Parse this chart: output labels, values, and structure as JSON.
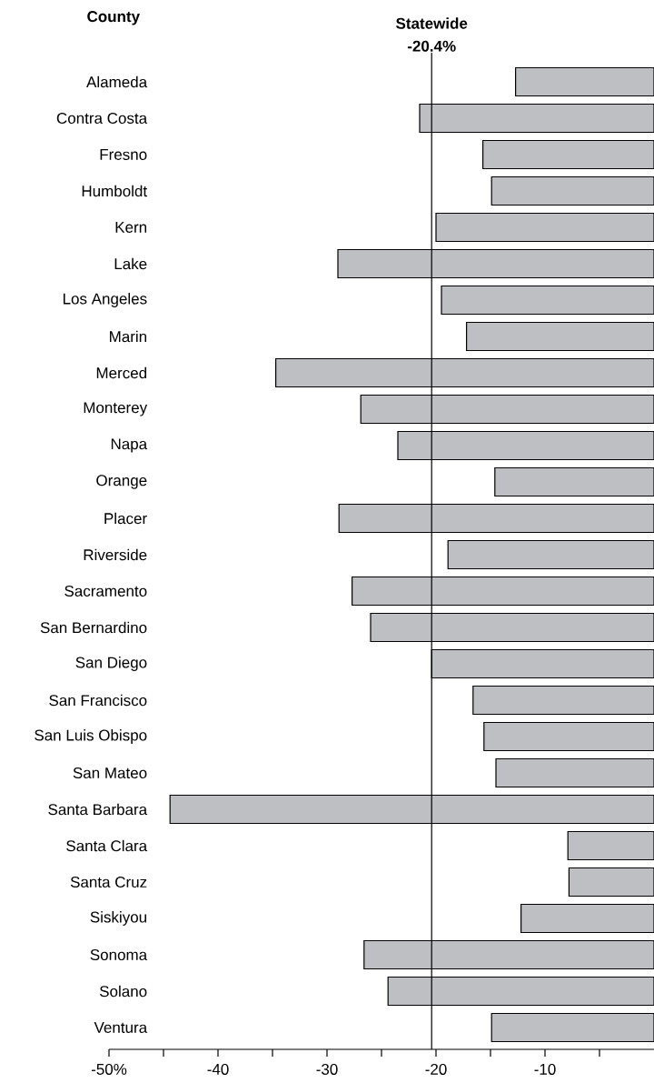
{
  "chart_data": {
    "type": "bar",
    "orientation": "horizontal",
    "ylabel": "County",
    "categories": [
      "Alameda",
      "Contra Costa",
      "Fresno",
      "Humboldt",
      "Kern",
      "Lake",
      "Los Angeles",
      "Marin",
      "Merced",
      "Monterey",
      "Napa",
      "Orange",
      "Placer",
      "Riverside",
      "Sacramento",
      "San Bernardino",
      "San Diego",
      "San Francisco",
      "San Luis Obispo",
      "San Mateo",
      "Santa Barbara",
      "Santa Clara",
      "Santa Cruz",
      "Siskiyou",
      "Sonoma",
      "Solano",
      "Ventura"
    ],
    "values": [
      -12.7,
      -21.5,
      -15.7,
      -14.9,
      -20.0,
      -29.0,
      -19.5,
      -17.2,
      -34.7,
      -26.9,
      -23.5,
      -14.6,
      -28.9,
      -18.9,
      -27.7,
      -26.0,
      -20.4,
      -16.6,
      -15.6,
      -14.5,
      -44.4,
      -7.9,
      -7.8,
      -12.2,
      -26.6,
      -24.4,
      -14.9
    ],
    "color": "#bebfc3",
    "xlim": [
      -50,
      0
    ],
    "xticks": [
      {
        "value": -50,
        "label": "-50%"
      },
      {
        "value": -45,
        "label": null
      },
      -40,
      {
        "value": -35,
        "label": null
      },
      -30,
      {
        "value": -25,
        "label": null
      },
      -20,
      {
        "value": -15,
        "label": null
      },
      -10,
      {
        "value": -5,
        "label": null
      }
    ],
    "ref_lines": [
      {
        "axis": "x",
        "value": -20.4,
        "label": "Statewide -20.4%",
        "color": "#000000"
      }
    ]
  }
}
